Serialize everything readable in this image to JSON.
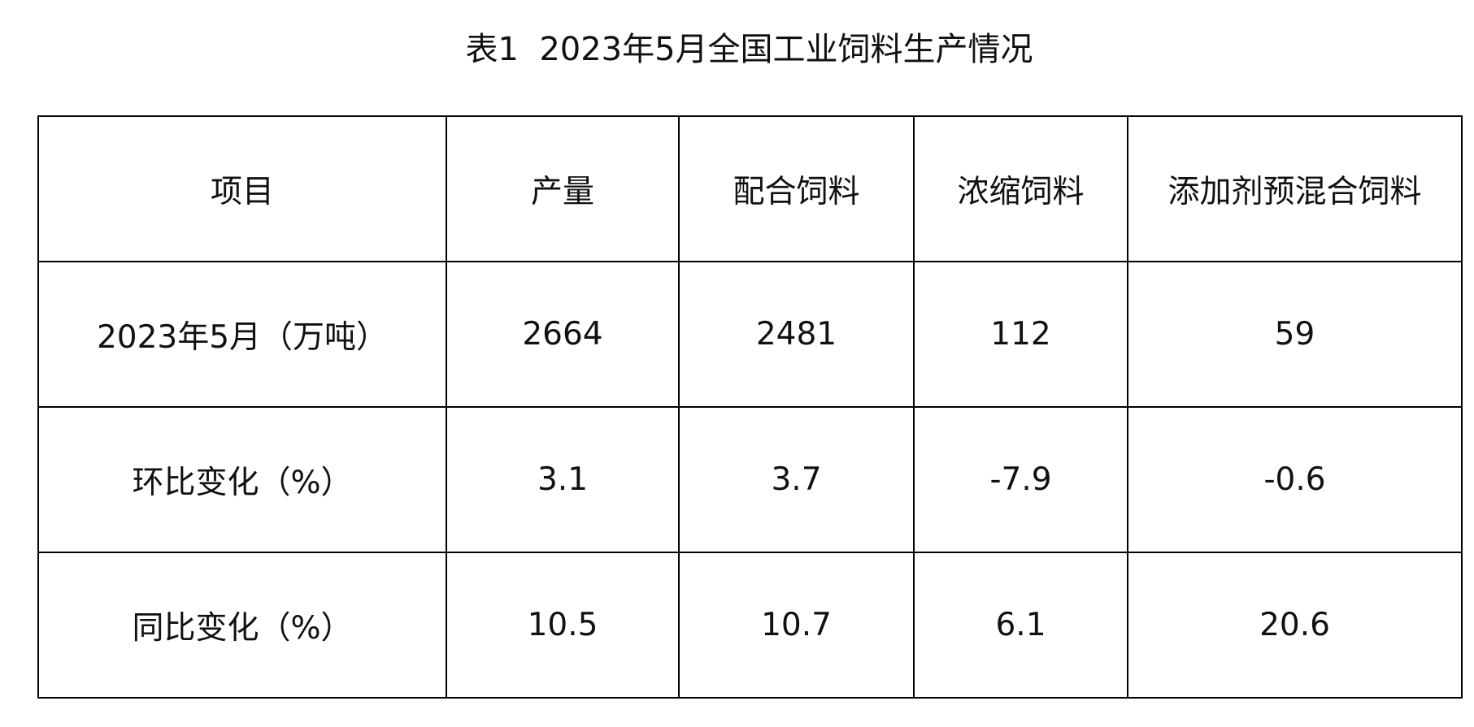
{
  "title": "表1  2023年5月全国工业饲料生产情况",
  "table": {
    "header": [
      "项目",
      "产量",
      "配合饲料",
      "浓缩饲料",
      "添加剂预混合饲料"
    ],
    "rows": [
      [
        "2023年5月（万吨）",
        "2664",
        "2481",
        "112",
        "59"
      ],
      [
        "环比变化（%）",
        "3.1",
        "3.7",
        "-7.9",
        "-0.6"
      ],
      [
        "同比变化（%）",
        "10.5",
        "10.7",
        "6.1",
        "20.6"
      ]
    ]
  }
}
